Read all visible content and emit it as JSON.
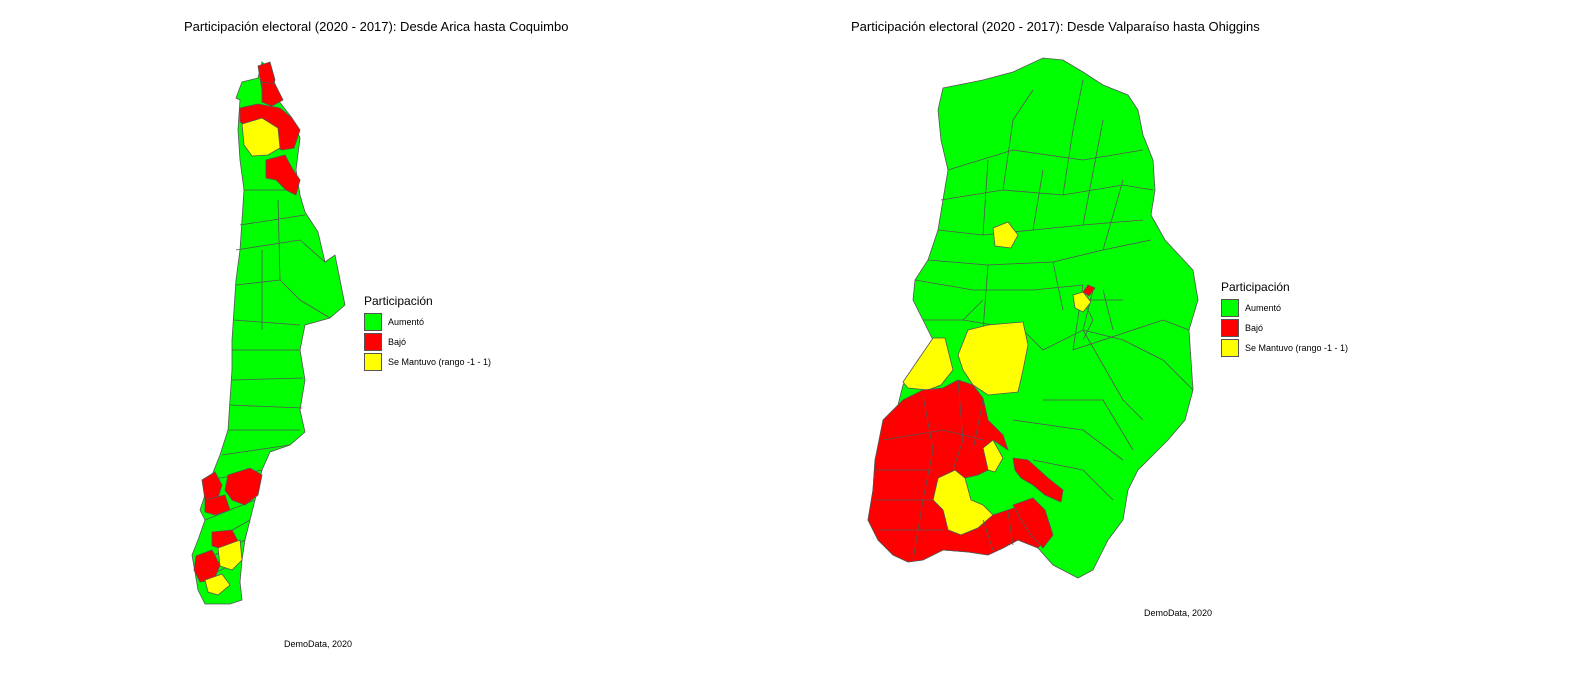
{
  "colors": {
    "aumento": "#00FF00",
    "bajo": "#FF0000",
    "se_mantuvo": "#FFFF00"
  },
  "left": {
    "title": "Participación electoral (2020 - 2017): Desde Arica hasta Coquimbo",
    "legend": {
      "title": "Participación",
      "items": [
        {
          "label": "Aumentó",
          "color": "#00FF00"
        },
        {
          "label": "Bajó",
          "color": "#FF0000"
        },
        {
          "label": "Se Mantuvo (rango -1 - 1)",
          "color": "#FFFF00"
        }
      ]
    },
    "source": "DemoData, 2020"
  },
  "right": {
    "title": "Participación electoral (2020 - 2017): Desde Valparaíso hasta Ohiggins",
    "legend": {
      "title": "Participación",
      "items": [
        {
          "label": "Aumentó",
          "color": "#00FF00"
        },
        {
          "label": "Bajó",
          "color": "#FF0000"
        },
        {
          "label": "Se Mantuvo (rango -1 - 1)",
          "color": "#FFFF00"
        }
      ]
    },
    "source": "DemoData, 2020"
  }
}
